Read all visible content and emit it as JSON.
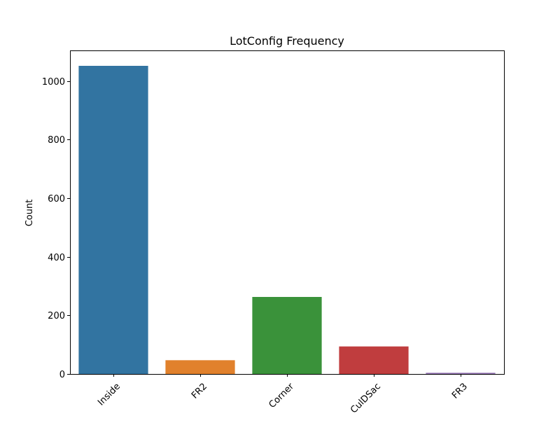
{
  "chart_data": {
    "type": "bar",
    "title": "LotConfig Frequency",
    "xlabel": "",
    "ylabel": "Count",
    "categories": [
      "Inside",
      "FR2",
      "Corner",
      "CulDSac",
      "FR3"
    ],
    "values": [
      1052,
      47,
      263,
      94,
      4
    ],
    "colors": [
      "#3274a1",
      "#e1812c",
      "#3a923a",
      "#c03d3e",
      "#9372b2"
    ],
    "ylim": [
      0,
      1104.6
    ],
    "yticks": [
      0,
      200,
      400,
      600,
      800,
      1000
    ],
    "ytick_labels": [
      "0",
      "200",
      "400",
      "600",
      "800",
      "1000"
    ],
    "grid": false,
    "legend": "none"
  }
}
